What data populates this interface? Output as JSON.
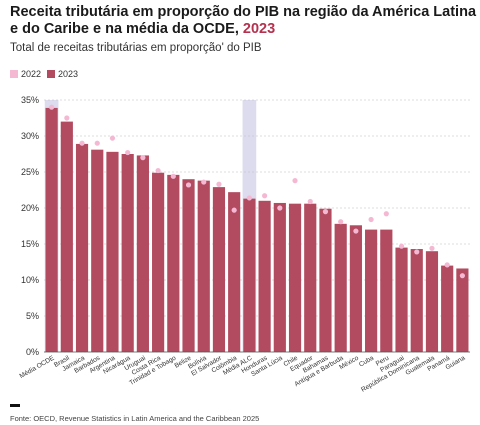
{
  "title": "Receita tributária em proporção do PIB na região da América Latina e do Caribe e na média da OCDE,",
  "title_year": "2023",
  "subtitle": "Total de receitas tributárias em proporção' do PIB",
  "legend": [
    {
      "label": "2022",
      "color": "#f5b8d3"
    },
    {
      "label": "2023",
      "color": "#b24a60"
    }
  ],
  "source": "Fonte: OECD, Revenue Statistics in Latin America and the Caribbean 2025",
  "chart_data": {
    "type": "bar",
    "categories": [
      "Média OCDE",
      "Brasil",
      "Jamaica",
      "Barbados",
      "Argentina",
      "Nicarágua",
      "Uruguai",
      "Costa Rica",
      "Trinidad e Tobago",
      "Belize",
      "Bolívia",
      "El Salvador",
      "Colômbia",
      "Média ALC",
      "Honduras",
      "Santa Lúcia",
      "Chile",
      "Equador",
      "Bahamas",
      "Antígua e Barbuda",
      "México",
      "Cuba",
      "Peru",
      "Paraguai",
      "República Dominicana",
      "Guatemala",
      "Panamá",
      "Guiana"
    ],
    "series": [
      {
        "name": "2022",
        "values": [
          34.0,
          32.5,
          29.0,
          29.0,
          29.7,
          27.7,
          27.0,
          25.2,
          24.4,
          23.2,
          23.6,
          23.3,
          19.7,
          21.4,
          21.7,
          20.0,
          23.8,
          20.9,
          19.5,
          18.1,
          16.8,
          18.4,
          19.2,
          14.7,
          13.9,
          14.4,
          12.1,
          10.6
        ]
      },
      {
        "name": "2023",
        "values": [
          33.9,
          32.0,
          28.9,
          28.1,
          27.8,
          27.5,
          27.3,
          24.9,
          24.6,
          24.0,
          23.8,
          22.9,
          22.2,
          21.3,
          21.0,
          20.7,
          20.6,
          20.6,
          19.9,
          17.8,
          17.6,
          17.0,
          17.0,
          14.5,
          14.3,
          14.0,
          12.0,
          11.6
        ]
      }
    ],
    "highlight_categories": [
      "Média OCDE",
      "Média ALC"
    ],
    "highlight_color": "#dcdcee",
    "y_tick_labels": [
      "0%",
      "5%",
      "10%",
      "15%",
      "20%",
      "25%",
      "30%",
      "35%"
    ],
    "ylim": [
      0,
      35
    ],
    "y_unit": "%",
    "grid": true,
    "legend_position": "top-left"
  }
}
